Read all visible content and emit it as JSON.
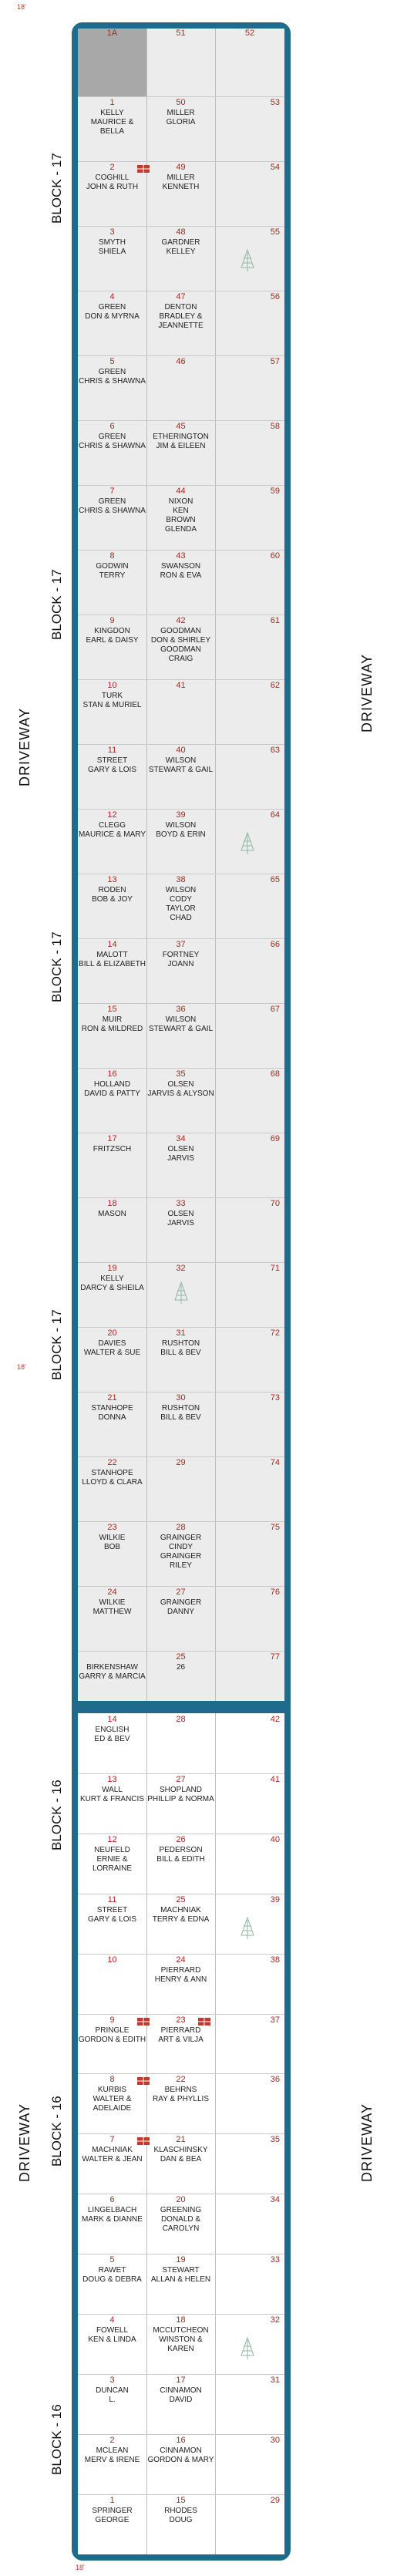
{
  "colors": {
    "frame": "#1f6b8a",
    "block17_bg": "#ececec",
    "number": "#b22222"
  },
  "labels": {
    "block17": "BLOCK - 17",
    "block16": "BLOCK - 16",
    "driveway": "DRIVEWAY",
    "dim": "18'",
    "dim_bottom": "18'"
  },
  "block17": {
    "header": [
      "1A",
      "51",
      "52"
    ],
    "rows": [
      {
        "l": "1",
        "ln": "KELLY\nMAURICE & BELLA",
        "m": "50",
        "mn": "MILLER\nGLORIA",
        "r": "53"
      },
      {
        "l": "2",
        "ln": "COGHILL\nJOHN & RUTH",
        "m": "49",
        "mn": "MILLER\nKENNETH",
        "r": "54"
      },
      {
        "l": "3",
        "ln": "SMYTH\nSHIELA",
        "m": "48",
        "mn": "GARDNER\nKELLEY",
        "r": "55"
      },
      {
        "l": "4",
        "ln": "GREEN\nDON & MYRNA",
        "m": "47",
        "mn": "DENTON\nBRADLEY &\nJEANNETTE",
        "r": "56"
      },
      {
        "l": "5",
        "ln": "GREEN\nCHRIS & SHAWNA",
        "m": "46",
        "mn": "",
        "r": "57"
      },
      {
        "l": "6",
        "ln": "GREEN\nCHRIS & SHAWNA",
        "m": "45",
        "mn": "ETHERINGTON\nJIM & EILEEN",
        "r": "58"
      },
      {
        "l": "7",
        "ln": "GREEN\nCHRIS & SHAWNA",
        "m": "44",
        "mn": "NIXON\nKEN\nBROWN\nGLENDA",
        "r": "59"
      },
      {
        "l": "8",
        "ln": "GODWIN\nTERRY",
        "m": "43",
        "mn": "SWANSON\nRON & EVA",
        "r": "60"
      },
      {
        "l": "9",
        "ln": "KINGDON\nEARL & DAISY",
        "m": "42",
        "mn": "GOODMAN\nDON & SHIRLEY\nGOODMAN\nCRAIG",
        "r": "61"
      },
      {
        "l": "10",
        "ln": "TURK\nSTAN & MURIEL",
        "m": "41",
        "mn": "",
        "r": "62"
      },
      {
        "l": "11",
        "ln": "STREET\nGARY & LOIS",
        "m": "40",
        "mn": "WILSON\nSTEWART & GAIL",
        "r": "63"
      },
      {
        "l": "12",
        "ln": "CLEGG\nMAURICE & MARY",
        "m": "39",
        "mn": "WILSON\nBOYD & ERIN",
        "r": "64"
      },
      {
        "l": "13",
        "ln": "RODEN\nBOB & JOY",
        "m": "38",
        "mn": "WILSON\nCODY\nTAYLOR\nCHAD",
        "r": "65"
      },
      {
        "l": "14",
        "ln": "MALOTT\nBILL & ELIZABETH",
        "m": "37",
        "mn": "FORTNEY\nJOANN",
        "r": "66"
      },
      {
        "l": "15",
        "ln": "MUIR\nRON & MILDRED",
        "m": "36",
        "mn": "WILSON\nSTEWART & GAIL",
        "r": "67"
      },
      {
        "l": "16",
        "ln": "HOLLAND\nDAVID & PATTY",
        "m": "35",
        "mn": "OLSEN\nJARVIS & ALYSON",
        "r": "68"
      },
      {
        "l": "17",
        "ln": "FRITZSCH",
        "m": "34",
        "mn": "OLSEN\nJARVIS",
        "r": "69"
      },
      {
        "l": "18",
        "ln": "MASON",
        "m": "33",
        "mn": "OLSEN\nJARVIS",
        "r": "70"
      },
      {
        "l": "19",
        "ln": "KELLY\nDARCY & SHEILA",
        "m": "32",
        "mn": "",
        "r": "71"
      },
      {
        "l": "20",
        "ln": "DAVIES\nWALTER & SUE",
        "m": "31",
        "mn": "RUSHTON\nBILL & BEV",
        "r": "72"
      },
      {
        "l": "21",
        "ln": "STANHOPE\nDONNA",
        "m": "30",
        "mn": "RUSHTON\nBILL & BEV",
        "r": "73"
      },
      {
        "l": "22",
        "ln": "STANHOPE\nLLOYD & CLARA",
        "m": "29",
        "mn": "",
        "r": "74"
      },
      {
        "l": "23",
        "ln": "WILKIE\nBOB",
        "m": "28",
        "mn": "GRAINGER\nCINDY\nGRAINGER\nRILEY",
        "r": "75"
      },
      {
        "l": "24",
        "ln": "WILKIE\nMATTHEW",
        "m": "27",
        "mn": "GRAINGER\nDANNY",
        "r": "76"
      },
      {
        "l": "",
        "ln": "BIRKENSHAW\nGARRY & MARCIA",
        "m": "25",
        "mn": "26",
        "r": "77"
      }
    ]
  },
  "block16": {
    "rows": [
      {
        "l": "14",
        "ln": "ENGLISH\nED & BEV",
        "m": "28",
        "mn": "",
        "r": "42"
      },
      {
        "l": "13",
        "ln": "WALL\nKURT & FRANCIS",
        "m": "27",
        "mn": "Shopland\nPhillip & Norma",
        "r": "41"
      },
      {
        "l": "12",
        "ln": "NEUFELD\nERNIE & LORRAINE",
        "m": "26",
        "mn": "PEDERSON\nBILL & EDITH",
        "r": "40"
      },
      {
        "l": "11",
        "ln": "STREET\nGARY & LOIS",
        "m": "25",
        "mn": "MACHNIAK\nTERRY & EDNA",
        "r": "39"
      },
      {
        "l": "10",
        "ln": "",
        "m": "24",
        "mn": "PIERRARD\nHENRY & ANN",
        "r": "38"
      },
      {
        "l": "9",
        "ln": "PRINGLE\nGORDON & EDITH",
        "m": "23",
        "mn": "PIERRARD\nART & VILJA",
        "r": "37"
      },
      {
        "l": "8",
        "ln": "KURBIS\nWALTER &\nADELAIDE",
        "m": "22",
        "mn": "BEHRNS\nRAY & PHYLLIS",
        "r": "36"
      },
      {
        "l": "7",
        "ln": "MACHNIAK\nWALTER & JEAN",
        "m": "21",
        "mn": "KLASCHINSKY\nDAN & BEA",
        "r": "35"
      },
      {
        "l": "6",
        "ln": "LINGELBACH\nMARK & DIANNE",
        "m": "20",
        "mn": "GREENING\nDONALD &\nCAROLYN",
        "r": "34"
      },
      {
        "l": "5",
        "ln": "RAWET\nDOUG & DEBRA",
        "m": "19",
        "mn": "STEWART\nALLAN & HELEN",
        "r": "33"
      },
      {
        "l": "4",
        "ln": "FOWELL\nKEN & LINDA",
        "m": "18",
        "mn": "McCUTCHEON\nWINSTON & KAREN",
        "r": "32"
      },
      {
        "l": "3",
        "ln": "DUNCAN\nL.",
        "m": "17",
        "mn": "CINNAMON\nDAVID",
        "r": "31"
      },
      {
        "l": "2",
        "ln": "McLEAN\nMERV & IRENE",
        "m": "16",
        "mn": "CINNAMON\nGORDON & MARY",
        "r": "30"
      },
      {
        "l": "1",
        "ln": "SPRINGER\nGEORGE",
        "m": "15",
        "mn": "RHODES\nDOUG",
        "r": "29"
      }
    ]
  }
}
